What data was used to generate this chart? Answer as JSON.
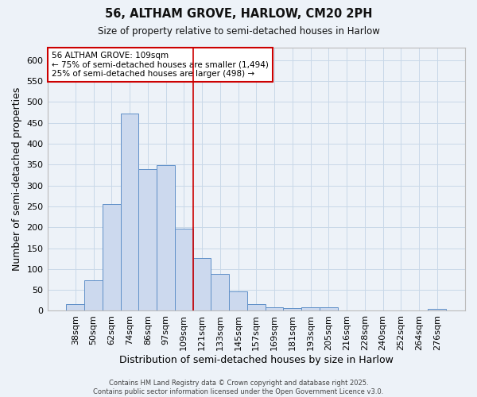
{
  "title": "56, ALTHAM GROVE, HARLOW, CM20 2PH",
  "subtitle": "Size of property relative to semi-detached houses in Harlow",
  "xlabel": "Distribution of semi-detached houses by size in Harlow",
  "ylabel": "Number of semi-detached properties",
  "categories": [
    "38sqm",
    "50sqm",
    "62sqm",
    "74sqm",
    "86sqm",
    "97sqm",
    "109sqm",
    "121sqm",
    "133sqm",
    "145sqm",
    "157sqm",
    "169sqm",
    "181sqm",
    "193sqm",
    "205sqm",
    "216sqm",
    "228sqm",
    "240sqm",
    "252sqm",
    "264sqm",
    "276sqm"
  ],
  "values": [
    17,
    73,
    255,
    473,
    340,
    348,
    197,
    126,
    88,
    46,
    17,
    9,
    7,
    8,
    9,
    1,
    1,
    0,
    1,
    0,
    5
  ],
  "bar_color": "#ccd9ee",
  "bar_edge_color": "#6090c8",
  "grid_color": "#c8d8e8",
  "background_color": "#edf2f8",
  "vline_color": "#cc0000",
  "vline_idx": 6,
  "annotation_text": "56 ALTHAM GROVE: 109sqm\n← 75% of semi-detached houses are smaller (1,494)\n25% of semi-detached houses are larger (498) →",
  "annotation_box_color": "#ffffff",
  "annotation_box_edge": "#cc0000",
  "footer_text": "Contains HM Land Registry data © Crown copyright and database right 2025.\nContains public sector information licensed under the Open Government Licence v3.0.",
  "ylim": [
    0,
    630
  ],
  "yticks": [
    0,
    50,
    100,
    150,
    200,
    250,
    300,
    350,
    400,
    450,
    500,
    550,
    600
  ]
}
